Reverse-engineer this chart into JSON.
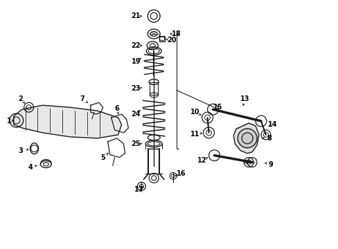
{
  "bg_color": "#ffffff",
  "fig_width": 4.89,
  "fig_height": 3.6,
  "dpi": 100,
  "line_color": "#1a1a1a",
  "label_fontsize": 7.0
}
